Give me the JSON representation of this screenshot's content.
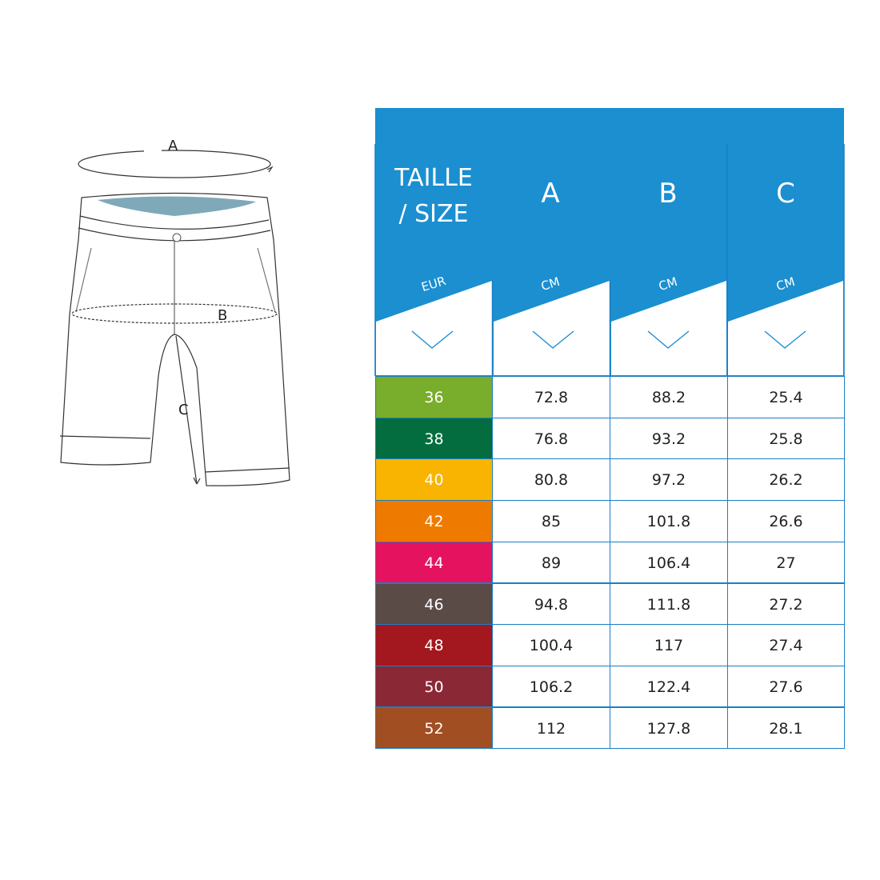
{
  "diagram": {
    "label_a": "A",
    "label_b": "B",
    "label_c": "C"
  },
  "header": {
    "size_title_line1": "TAILLE",
    "size_title_line2": "/ SIZE",
    "columns": [
      "A",
      "B",
      "C"
    ],
    "size_unit": "EUR",
    "units": [
      "CM",
      "CM",
      "CM"
    ],
    "chevron_icon": "chevron-down-icon"
  },
  "colors": {
    "header_blue": "#1b8fd0",
    "border_blue": "#1c7fc4"
  },
  "rows": [
    {
      "size": "36",
      "a": "72.8",
      "b": "88.2",
      "c": "25.4",
      "color": "#79ad2c"
    },
    {
      "size": "38",
      "a": "76.8",
      "b": "93.2",
      "c": "25.8",
      "color": "#036d3f"
    },
    {
      "size": "40",
      "a": "80.8",
      "b": "97.2",
      "c": "26.2",
      "color": "#f8b400"
    },
    {
      "size": "42",
      "a": "85",
      "b": "101.8",
      "c": "26.6",
      "color": "#ef7a00"
    },
    {
      "size": "44",
      "a": "89",
      "b": "106.4",
      "c": "27",
      "color": "#e5135f"
    },
    {
      "size": "46",
      "a": "94.8",
      "b": "111.8",
      "c": "27.2",
      "color": "#5b4b47"
    },
    {
      "size": "48",
      "a": "100.4",
      "b": "117",
      "c": "27.4",
      "color": "#a3171e"
    },
    {
      "size": "50",
      "a": "106.2",
      "b": "122.4",
      "c": "27.6",
      "color": "#8b2835"
    },
    {
      "size": "52",
      "a": "112",
      "b": "127.8",
      "c": "28.1",
      "color": "#a24e23"
    }
  ]
}
